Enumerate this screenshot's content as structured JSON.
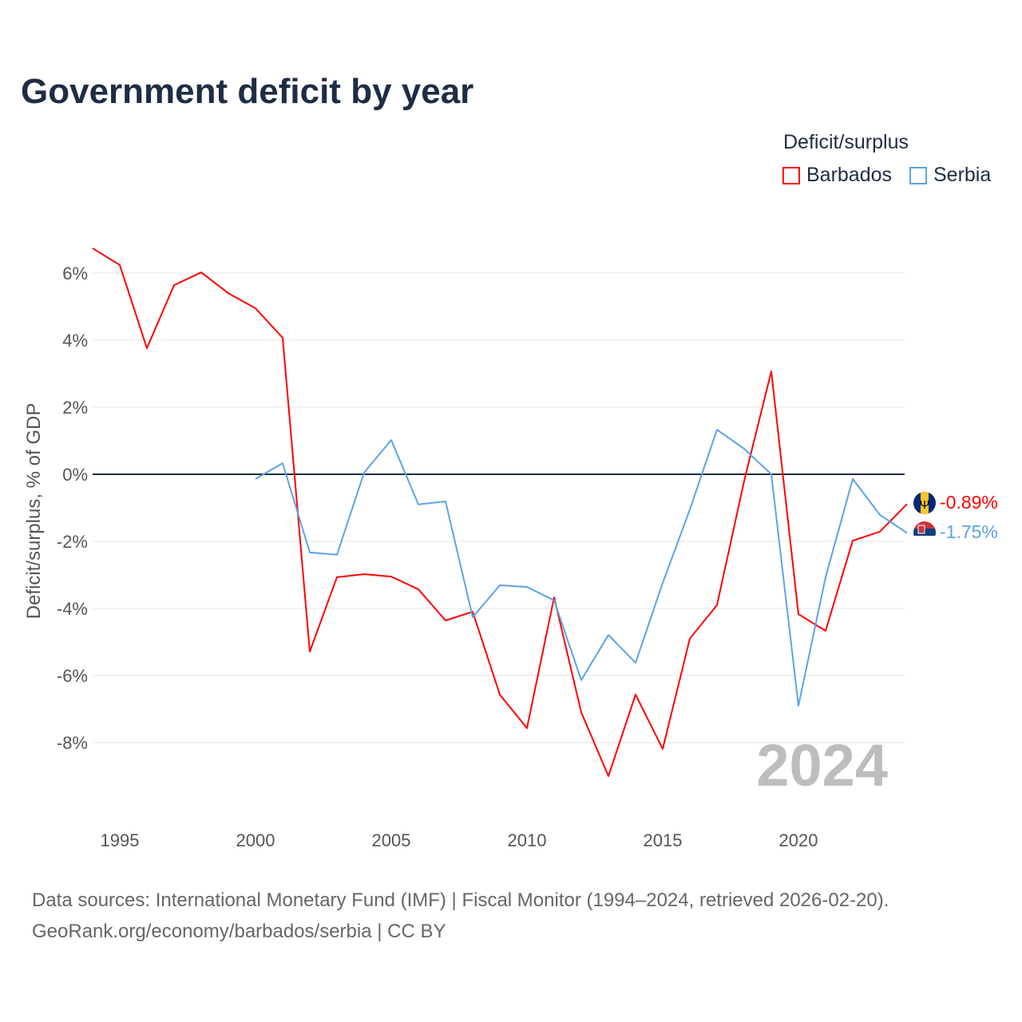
{
  "chart_data": {
    "type": "line",
    "title": "Government deficit by year",
    "xlabel": "",
    "ylabel": "Deficit/surplus, % of GDP",
    "xlim": [
      1994,
      2024
    ],
    "ylim": [
      -10,
      7.2
    ],
    "grid": true,
    "x_ticks": [
      1995,
      2000,
      2005,
      2010,
      2015,
      2020
    ],
    "y_ticks": [
      6,
      4,
      2,
      0,
      -2,
      -4,
      -6,
      -8
    ],
    "y_tick_labels": [
      "6%",
      "4%",
      "2%",
      "0%",
      "-2%",
      "-4%",
      "-6%",
      "-8%"
    ],
    "legend": {
      "title": "Deficit/surplus",
      "placement": "top-right"
    },
    "year_watermark": "2024",
    "series": [
      {
        "name": "Barbados",
        "color": "#ff0000",
        "end_label": "-0.89%",
        "x": [
          1994,
          1995,
          1996,
          1997,
          1998,
          1999,
          2000,
          2001,
          2002,
          2003,
          2004,
          2005,
          2006,
          2007,
          2008,
          2009,
          2010,
          2011,
          2012,
          2013,
          2014,
          2015,
          2016,
          2017,
          2018,
          2019,
          2020,
          2021,
          2022,
          2023,
          2024
        ],
        "values": [
          6.74,
          6.24,
          3.76,
          5.64,
          6.02,
          5.4,
          4.95,
          4.07,
          -5.29,
          -3.07,
          -2.98,
          -3.05,
          -3.43,
          -4.36,
          -4.1,
          -6.57,
          -7.57,
          -3.67,
          -7.1,
          -9.0,
          -6.57,
          -8.19,
          -4.9,
          -3.9,
          -0.2,
          3.07,
          -4.17,
          -4.67,
          -1.98,
          -1.71,
          -0.89
        ]
      },
      {
        "name": "Serbia",
        "color": "#5ba3e8",
        "end_label": "-1.75%",
        "x": [
          2000,
          2001,
          2002,
          2003,
          2004,
          2005,
          2006,
          2007,
          2008,
          2009,
          2010,
          2011,
          2012,
          2013,
          2014,
          2015,
          2016,
          2017,
          2018,
          2019,
          2020,
          2021,
          2022,
          2023,
          2024
        ],
        "values": [
          -0.14,
          0.33,
          -2.33,
          -2.4,
          0.05,
          1.02,
          -0.9,
          -0.81,
          -4.26,
          -3.31,
          -3.36,
          -3.76,
          -6.14,
          -4.79,
          -5.62,
          -3.24,
          -1.05,
          1.33,
          0.76,
          0.0,
          -6.9,
          -3.07,
          -0.14,
          -1.21,
          -1.75
        ]
      }
    ]
  },
  "footer": {
    "line1": "Data sources: International Monetary Fund (IMF) | Fiscal Monitor (1994–2024, retrieved 2026-02-20).",
    "line2": "GeoRank.org/economy/barbados/serbia | CC BY"
  }
}
